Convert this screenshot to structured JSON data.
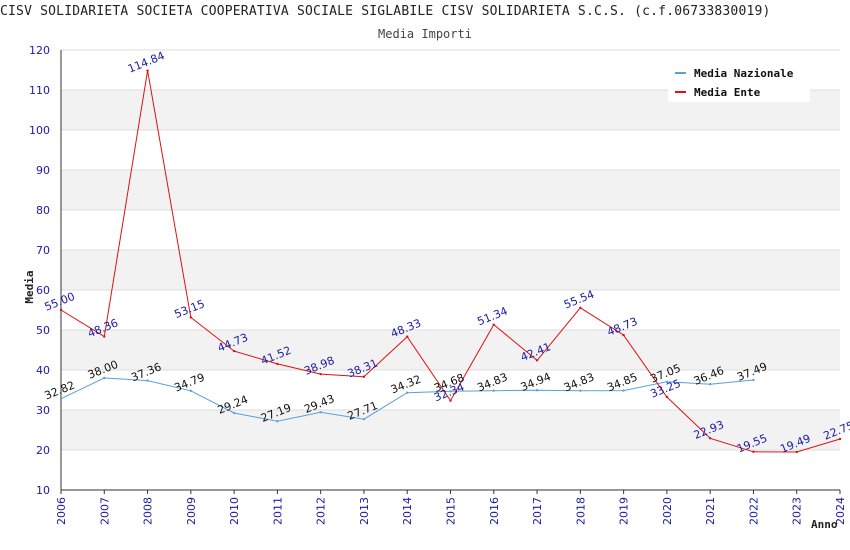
{
  "chart_data": {
    "type": "line",
    "title": "CISV SOLIDARIETA SOCIETA COOPERATIVA SOCIALE SIGLABILE CISV SOLIDARIETA S.C.S. (c.f.06733830019)",
    "subtitle": "Media Importi",
    "ylabel": "Media",
    "xlabel": "Anno",
    "ylim": [
      10,
      120
    ],
    "yticks": [
      10,
      20,
      30,
      40,
      50,
      60,
      70,
      80,
      90,
      100,
      110,
      120
    ],
    "categories": [
      "2006",
      "2007",
      "2008",
      "2009",
      "2010",
      "2011",
      "2012",
      "2013",
      "2014",
      "2015",
      "2016",
      "2017",
      "2018",
      "2019",
      "2020",
      "2021",
      "2022",
      "2023",
      "2024"
    ],
    "series": [
      {
        "name": "Media Nazionale",
        "color": "#5aa0d8",
        "label_color": "#111111",
        "values": [
          32.82,
          38.0,
          37.36,
          34.79,
          29.24,
          27.19,
          29.43,
          27.71,
          34.32,
          34.68,
          34.83,
          34.94,
          34.83,
          34.85,
          37.05,
          36.46,
          37.49,
          null,
          null
        ],
        "labels": [
          "32.82",
          "38.00",
          "37.36",
          "34.79",
          "29.24",
          "27.19",
          "29.43",
          "27.71",
          "34.32",
          "34.68",
          "34.83",
          "34.94",
          "34.83",
          "34.85",
          "37.05",
          "36.46",
          "37.49",
          null,
          null
        ]
      },
      {
        "name": "Media Ente",
        "color": "#dd1111",
        "label_color": "#1a1aa6",
        "values": [
          55.0,
          48.36,
          114.84,
          53.15,
          44.73,
          41.52,
          38.98,
          38.31,
          48.33,
          32.34,
          51.34,
          42.41,
          55.54,
          48.73,
          33.25,
          22.93,
          19.55,
          19.49,
          22.75
        ],
        "labels": [
          "55.00",
          "48.36",
          "114.84",
          "53.15",
          "44.73",
          "41.52",
          "38.98",
          "38.31",
          "48.33",
          "32.34",
          "51.34",
          "42.41",
          "55.54",
          "48.73",
          "33.25",
          "22.93",
          "19.55",
          "19.49",
          "22.75"
        ]
      }
    ],
    "legend": "top-right",
    "grid": "horizontal alternating bands"
  }
}
